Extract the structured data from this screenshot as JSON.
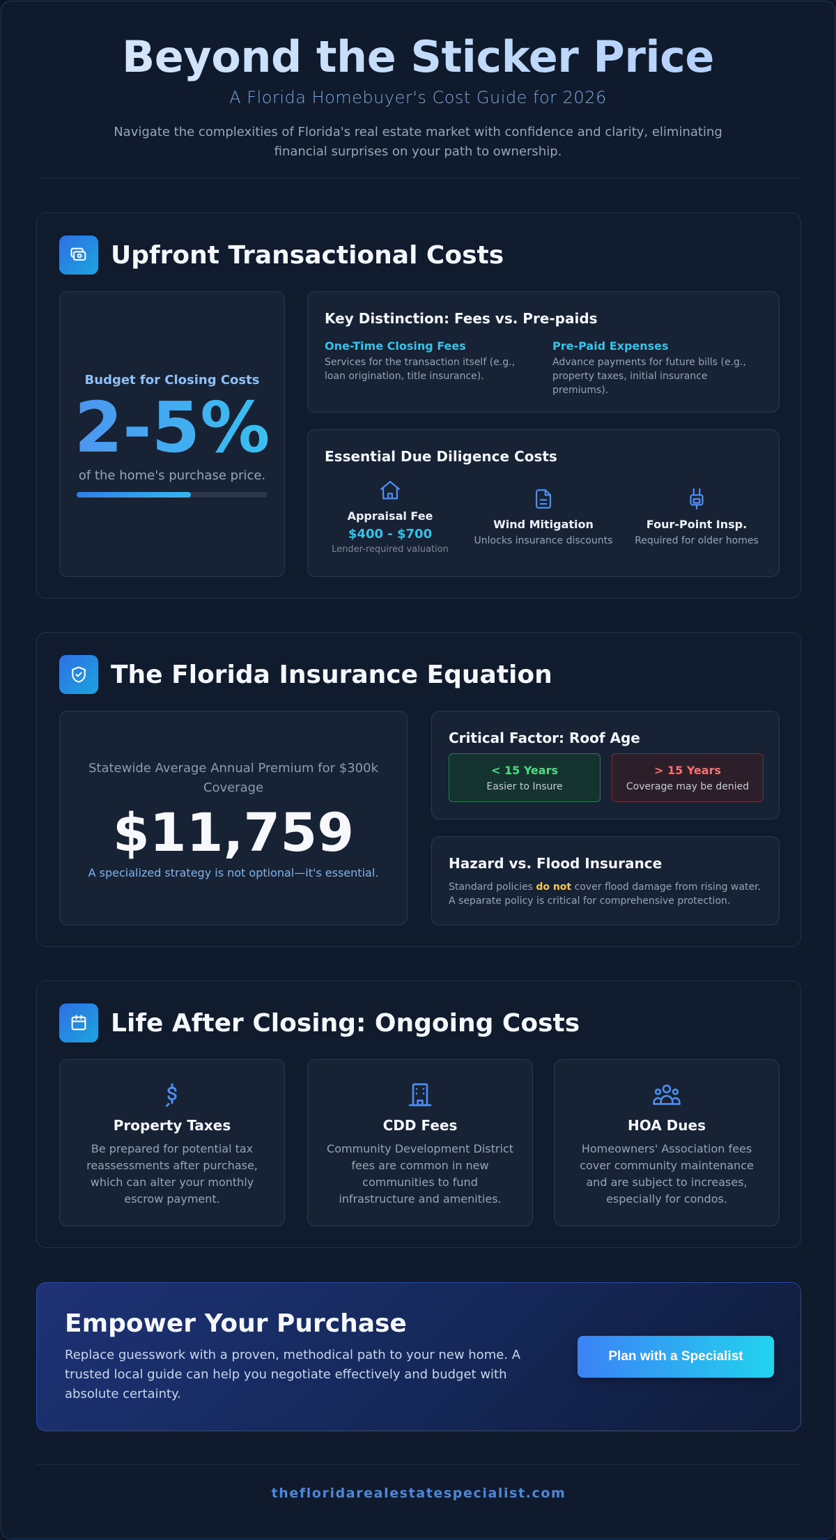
{
  "header": {
    "title": "Beyond the Sticker Price",
    "subtitle": "A Florida Homebuyer's Cost Guide for 2026",
    "intro": "Navigate the complexities of Florida's real estate market with confidence and clarity, eliminating financial surprises on your path to ownership."
  },
  "upfront": {
    "title": "Upfront Transactional Costs",
    "icon": "money-icon",
    "budget": {
      "label": "Budget for Closing Costs",
      "value": "2-5%",
      "sub": "of the home's purchase price.",
      "bar_fill": 0.6
    },
    "distinction": {
      "title": "Key Distinction: Fees vs. Pre-paids",
      "fees_title": "One-Time Closing Fees",
      "fees_text": "Services for the transaction itself (e.g., loan origination, title insurance).",
      "prepaid_title": "Pre-Paid Expenses",
      "prepaid_text": "Advance payments for future bills (e.g., property taxes, initial insurance premiums)."
    },
    "due_diligence": {
      "title": "Essential Due Diligence Costs",
      "appraisal": {
        "name": "Appraisal Fee",
        "price": "$400 - $700",
        "note": "Lender-required valuation",
        "icon": "home-icon"
      },
      "wind": {
        "name": "Wind Mitigation",
        "sub": "Unlocks insurance discounts",
        "icon": "document-icon"
      },
      "fourpoint": {
        "name": "Four-Point Insp.",
        "sub": "Required for older homes",
        "icon": "plug-icon"
      }
    }
  },
  "insurance": {
    "title": "The Florida Insurance Equation",
    "icon": "shield-check-icon",
    "premium": {
      "label": "Statewide Average Annual Premium for $300k Coverage",
      "value": "$11,759",
      "note": "A specialized strategy is not optional—it's essential."
    },
    "roof": {
      "title": "Critical Factor: Roof Age",
      "good_head": "< 15 Years",
      "good_sub": "Easier to Insure",
      "bad_head": "> 15 Years",
      "bad_sub": "Coverage may be denied"
    },
    "flood": {
      "title": "Hazard vs. Flood Insurance",
      "text_before": "Standard policies ",
      "text_em": "do not",
      "text_after": " cover flood damage from rising water. A separate policy is critical for comprehensive protection."
    }
  },
  "ongoing": {
    "title": "Life After Closing: Ongoing Costs",
    "icon": "calendar-icon",
    "taxes": {
      "title": "Property Taxes",
      "text": "Be prepared for potential tax reassessments after purchase, which can alter your monthly escrow payment.",
      "icon": "dollar-icon"
    },
    "cdd": {
      "title": "CDD Fees",
      "text": "Community Development District fees are common in new communities to fund infrastructure and amenities.",
      "icon": "building-icon"
    },
    "hoa": {
      "title": "HOA Dues",
      "text": "Homeowners' Association fees cover community maintenance and are subject to increases, especially for condos.",
      "icon": "people-icon"
    }
  },
  "cta": {
    "title": "Empower Your Purchase",
    "text": "Replace guesswork with a proven, methodical path to your new home. A trusted local guide can help you negotiate effectively and budget with absolute certainty.",
    "button": "Plan with a Specialist"
  },
  "footer": {
    "site": "thefloridarealestatespecialist.com"
  },
  "colors": {
    "background": "#0f1a2c",
    "accent_blue": "#3b82f6",
    "accent_cyan": "#35c3ea",
    "good_green": "#4ade80",
    "bad_red": "#f87171",
    "highlight_yellow": "#f5c84a"
  }
}
